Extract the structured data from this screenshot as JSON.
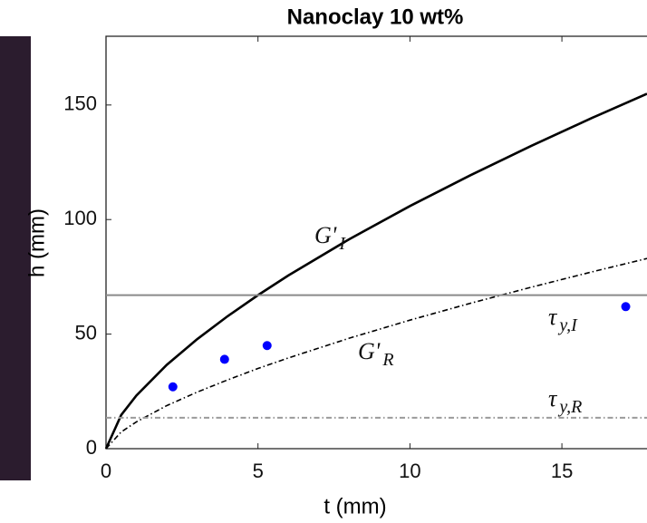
{
  "chart_data": {
    "type": "line",
    "title": "Nanoclay 10 wt%",
    "xlabel": "t (mm)",
    "ylabel": "h (mm)",
    "xlim": [
      0,
      17.8
    ],
    "ylim": [
      0,
      180
    ],
    "xticks": [
      0,
      5,
      10,
      15
    ],
    "yticks": [
      0,
      50,
      100,
      150
    ],
    "series": [
      {
        "style": "solid",
        "color": "#000000",
        "x": [
          0,
          0.5,
          1,
          2,
          3,
          4,
          5,
          6,
          8,
          10,
          12,
          14,
          16,
          17.8
        ],
        "values": [
          0,
          14.7,
          23.2,
          36.6,
          47.8,
          57.8,
          67,
          75.6,
          91.4,
          105.9,
          119.4,
          132.2,
          144.4,
          154.9
        ]
      },
      {
        "style": "dashdot",
        "color": "#000000",
        "x": [
          0,
          0.5,
          1,
          2,
          3,
          4,
          5,
          6,
          8,
          10,
          12,
          14,
          16,
          17.8
        ],
        "values": [
          0,
          7.3,
          11.7,
          18.8,
          24.7,
          30.0,
          35.0,
          39.6,
          48.2,
          56.1,
          63.5,
          70.5,
          77.2,
          83.0
        ]
      },
      {
        "style": "solid",
        "color": "#8a8a8a",
        "x": [
          0,
          17.8
        ],
        "values": [
          67,
          67
        ]
      },
      {
        "style": "dashdot",
        "color": "#9a9a9a",
        "x": [
          0,
          17.8
        ],
        "values": [
          13.5,
          13.5
        ]
      },
      {
        "style": "markers",
        "color": "#0000ff",
        "x": [
          2.2,
          3.9,
          5.3,
          17.1
        ],
        "values": [
          27,
          39,
          45,
          62
        ]
      }
    ],
    "annotations": [
      {
        "text": "G'",
        "sub": "I"
      },
      {
        "text": "G'",
        "sub": "R"
      },
      {
        "text": "τ",
        "sub": "y,I"
      },
      {
        "text": "τ",
        "sub": "y,R"
      }
    ]
  }
}
